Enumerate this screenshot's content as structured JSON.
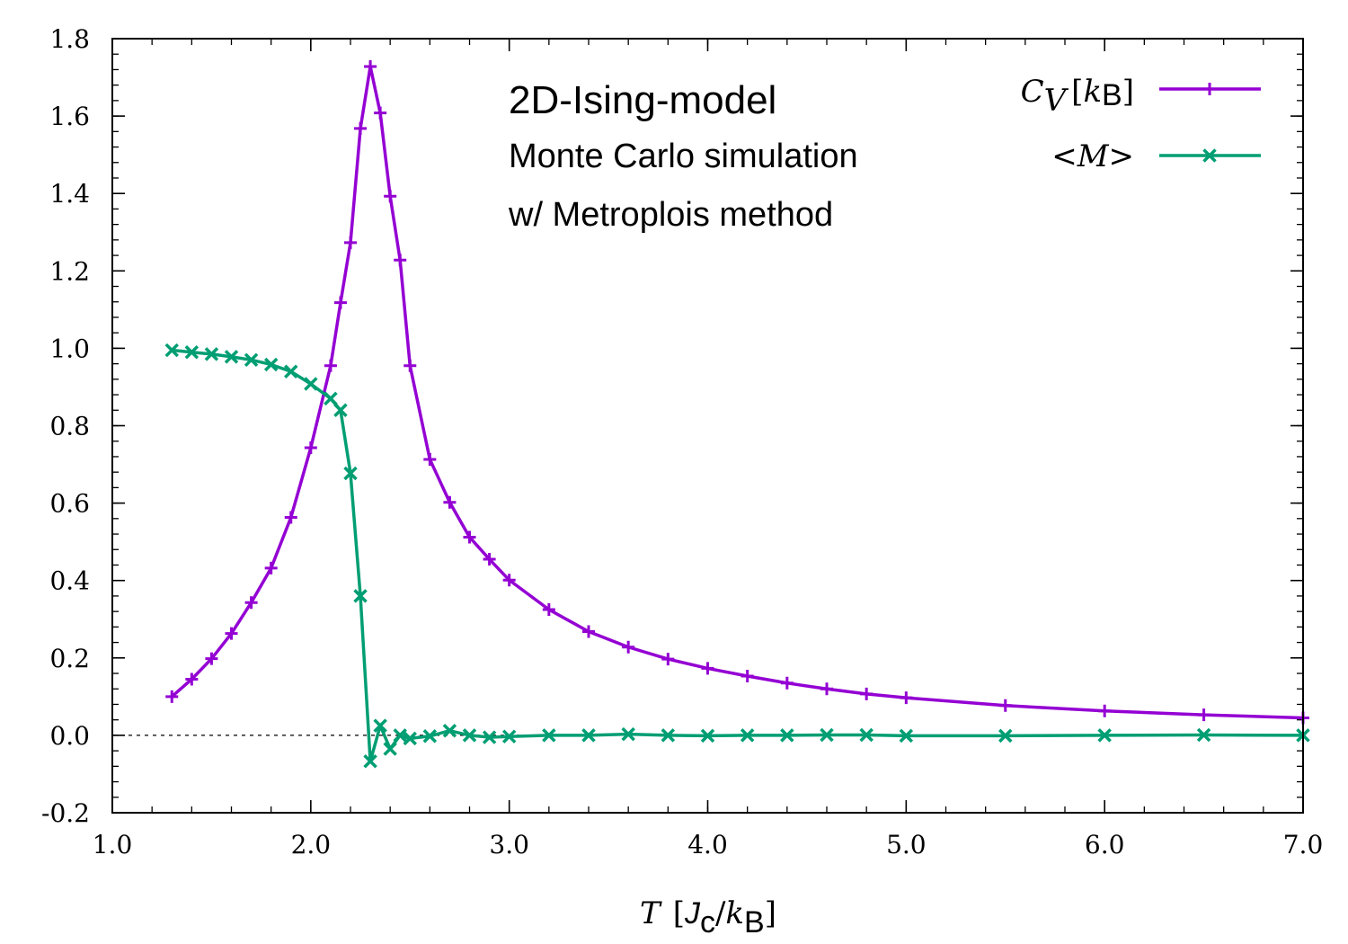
{
  "chart_data": {
    "type": "line",
    "title": "",
    "xlabel": {
      "var": "T",
      "open": "[",
      "unit_a": "J",
      "unit_a_sub": "c",
      "slash": "/",
      "unit_b": "k",
      "unit_b_sub": "B",
      "close": "]"
    },
    "ylabel": "",
    "xlim": [
      1.0,
      7.0
    ],
    "ylim": [
      -0.2,
      1.8
    ],
    "x_ticks": [
      {
        "value": 1.0,
        "label": "1.0"
      },
      {
        "value": 2.0,
        "label": "2.0"
      },
      {
        "value": 3.0,
        "label": "3.0"
      },
      {
        "value": 4.0,
        "label": "4.0"
      },
      {
        "value": 5.0,
        "label": "5.0"
      },
      {
        "value": 6.0,
        "label": "6.0"
      },
      {
        "value": 7.0,
        "label": "7.0"
      }
    ],
    "y_ticks": [
      {
        "value": -0.2,
        "label": "-0.2"
      },
      {
        "value": 0.0,
        "label": "0.0"
      },
      {
        "value": 0.2,
        "label": "0.2"
      },
      {
        "value": 0.4,
        "label": "0.4"
      },
      {
        "value": 0.6,
        "label": "0.6"
      },
      {
        "value": 0.8,
        "label": "0.8"
      },
      {
        "value": 1.0,
        "label": "1.0"
      },
      {
        "value": 1.2,
        "label": "1.2"
      },
      {
        "value": 1.4,
        "label": "1.4"
      },
      {
        "value": 1.6,
        "label": "1.6"
      },
      {
        "value": 1.8,
        "label": "1.8"
      }
    ],
    "x_minor_step": 0.2,
    "y_minor_step": 0.04,
    "grid": false,
    "zero_line": true,
    "legend_position": "top-right",
    "annotation": {
      "title": "2D-Ising-model",
      "lines": [
        "Monte Carlo simulation",
        "w/ Metroplois method"
      ]
    },
    "series": [
      {
        "key": "cv",
        "legend": {
          "var": "C",
          "var_sub": "V",
          "open": "[",
          "unit": "k",
          "unit_sub": "B",
          "close": "]"
        },
        "color": "#9400d3",
        "marker": "plus",
        "x": [
          1.3,
          1.4,
          1.5,
          1.6,
          1.7,
          1.8,
          1.9,
          2.0,
          2.1,
          2.15,
          2.2,
          2.25,
          2.3,
          2.35,
          2.4,
          2.45,
          2.5,
          2.6,
          2.7,
          2.8,
          2.9,
          3.0,
          3.2,
          3.4,
          3.6,
          3.8,
          4.0,
          4.2,
          4.4,
          4.6,
          4.8,
          5.0,
          5.5,
          6.0,
          6.5,
          7.0
        ],
        "y": [
          0.1,
          0.145,
          0.198,
          0.263,
          0.343,
          0.432,
          0.563,
          0.743,
          0.955,
          1.118,
          1.273,
          1.568,
          1.728,
          1.608,
          1.393,
          1.228,
          0.955,
          0.713,
          0.602,
          0.512,
          0.455,
          0.401,
          0.325,
          0.268,
          0.228,
          0.197,
          0.173,
          0.153,
          0.135,
          0.12,
          0.107,
          0.097,
          0.077,
          0.063,
          0.053,
          0.045
        ]
      },
      {
        "key": "m",
        "legend": {
          "text": "<M>"
        },
        "color": "#009e73",
        "marker": "cross",
        "x": [
          1.3,
          1.4,
          1.5,
          1.6,
          1.7,
          1.8,
          1.9,
          2.0,
          2.1,
          2.15,
          2.2,
          2.25,
          2.3,
          2.35,
          2.4,
          2.45,
          2.5,
          2.6,
          2.7,
          2.8,
          2.9,
          3.0,
          3.2,
          3.4,
          3.6,
          3.8,
          4.0,
          4.2,
          4.4,
          4.6,
          4.8,
          5.0,
          5.5,
          6.0,
          6.5,
          7.0
        ],
        "y": [
          0.995,
          0.99,
          0.985,
          0.978,
          0.97,
          0.958,
          0.94,
          0.908,
          0.87,
          0.84,
          0.677,
          0.36,
          -0.067,
          0.025,
          -0.035,
          0.0,
          -0.008,
          -0.002,
          0.012,
          0.0,
          -0.005,
          -0.003,
          0.0,
          0.0,
          0.003,
          0.0,
          -0.001,
          0.0,
          0.0,
          0.001,
          0.001,
          -0.001,
          -0.001,
          0.0,
          0.001,
          0.0
        ]
      }
    ]
  }
}
